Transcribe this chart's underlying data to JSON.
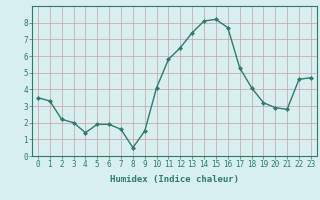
{
  "x": [
    0,
    1,
    2,
    3,
    4,
    5,
    6,
    7,
    8,
    9,
    10,
    11,
    12,
    13,
    14,
    15,
    16,
    17,
    18,
    19,
    20,
    21,
    22,
    23
  ],
  "y": [
    3.5,
    3.3,
    2.2,
    2.0,
    1.4,
    1.9,
    1.9,
    1.6,
    0.5,
    1.5,
    4.1,
    5.8,
    6.5,
    7.4,
    8.1,
    8.2,
    7.7,
    5.3,
    4.1,
    3.2,
    2.9,
    2.8,
    4.6,
    4.7
  ],
  "line_color": "#2e7b6e",
  "marker": "D",
  "marker_size": 2,
  "bg_color": "#d8efef",
  "grid_color": "#b8d8d8",
  "xlabel": "Humidex (Indice chaleur)",
  "xlim": [
    -0.5,
    23.5
  ],
  "ylim": [
    0,
    9
  ],
  "yticks": [
    0,
    1,
    2,
    3,
    4,
    5,
    6,
    7,
    8
  ],
  "xtick_labels": [
    "0",
    "1",
    "2",
    "3",
    "4",
    "5",
    "6",
    "7",
    "8",
    "9",
    "10",
    "11",
    "12",
    "13",
    "14",
    "15",
    "16",
    "17",
    "18",
    "19",
    "20",
    "21",
    "22",
    "23"
  ],
  "label_fontsize": 6.5,
  "tick_fontsize": 5.5,
  "tick_color": "#2e7b6e",
  "line_width": 1.0
}
